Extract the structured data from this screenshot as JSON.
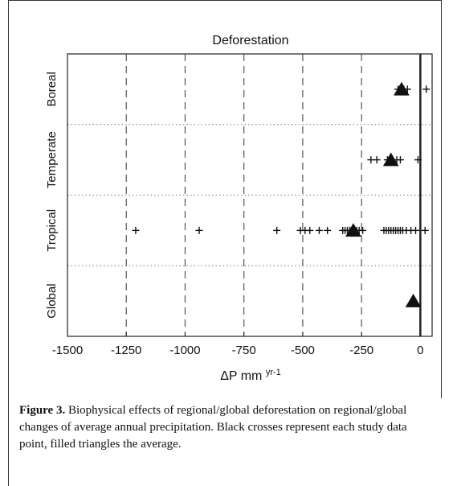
{
  "chart_data": {
    "type": "scatter",
    "title": "Deforestation",
    "xlabel_main": "ΔP mm ",
    "xlabel_unit_sup": "yr-1",
    "ylabel": "",
    "xlim": [
      -1500,
      50
    ],
    "x_ticks": [
      "-1500",
      "-1250",
      "-1000",
      "-750",
      "-500",
      "-250",
      "0"
    ],
    "x_tick_values": [
      -1500,
      -1250,
      -1000,
      -750,
      -500,
      -250,
      0
    ],
    "categories": [
      "Boreal",
      "Temperate",
      "Tropical",
      "Global"
    ],
    "grid": "dashed vertical, dotted horizontal",
    "reference_line_x": 0,
    "series": [
      {
        "marker": "cross",
        "points": [
          {
            "category": "Boreal",
            "x": -95
          },
          {
            "category": "Boreal",
            "x": -70
          },
          {
            "category": "Boreal",
            "x": -55
          },
          {
            "category": "Boreal",
            "x": 25
          },
          {
            "category": "Temperate",
            "x": -210
          },
          {
            "category": "Temperate",
            "x": -185
          },
          {
            "category": "Temperate",
            "x": -140
          },
          {
            "category": "Temperate",
            "x": -120
          },
          {
            "category": "Temperate",
            "x": -100
          },
          {
            "category": "Temperate",
            "x": -85
          },
          {
            "category": "Temperate",
            "x": -10
          },
          {
            "category": "Tropical",
            "x": -1210
          },
          {
            "category": "Tropical",
            "x": -940
          },
          {
            "category": "Tropical",
            "x": -610
          },
          {
            "category": "Tropical",
            "x": -510
          },
          {
            "category": "Tropical",
            "x": -490
          },
          {
            "category": "Tropical",
            "x": -470
          },
          {
            "category": "Tropical",
            "x": -430
          },
          {
            "category": "Tropical",
            "x": -395
          },
          {
            "category": "Tropical",
            "x": -330
          },
          {
            "category": "Tropical",
            "x": -320
          },
          {
            "category": "Tropical",
            "x": -310
          },
          {
            "category": "Tropical",
            "x": -300
          },
          {
            "category": "Tropical",
            "x": -290
          },
          {
            "category": "Tropical",
            "x": -280
          },
          {
            "category": "Tropical",
            "x": -270
          },
          {
            "category": "Tropical",
            "x": -260
          },
          {
            "category": "Tropical",
            "x": -245
          },
          {
            "category": "Tropical",
            "x": -155
          },
          {
            "category": "Tropical",
            "x": -145
          },
          {
            "category": "Tropical",
            "x": -135
          },
          {
            "category": "Tropical",
            "x": -125
          },
          {
            "category": "Tropical",
            "x": -115
          },
          {
            "category": "Tropical",
            "x": -105
          },
          {
            "category": "Tropical",
            "x": -95
          },
          {
            "category": "Tropical",
            "x": -85
          },
          {
            "category": "Tropical",
            "x": -75
          },
          {
            "category": "Tropical",
            "x": -60
          },
          {
            "category": "Tropical",
            "x": -40
          },
          {
            "category": "Tropical",
            "x": -20
          },
          {
            "category": "Tropical",
            "x": 20
          }
        ]
      },
      {
        "marker": "filled-triangle",
        "points": [
          {
            "category": "Boreal",
            "x": -80
          },
          {
            "category": "Temperate",
            "x": -125
          },
          {
            "category": "Tropical",
            "x": -285
          },
          {
            "category": "Global",
            "x": -30
          }
        ]
      }
    ]
  },
  "caption": {
    "label": "Figure 3.",
    "text": " Biophysical effects of regional/global deforestation on regional/global changes of average annual precipitation. Black crosses represent each study data point, filled triangles the average."
  }
}
